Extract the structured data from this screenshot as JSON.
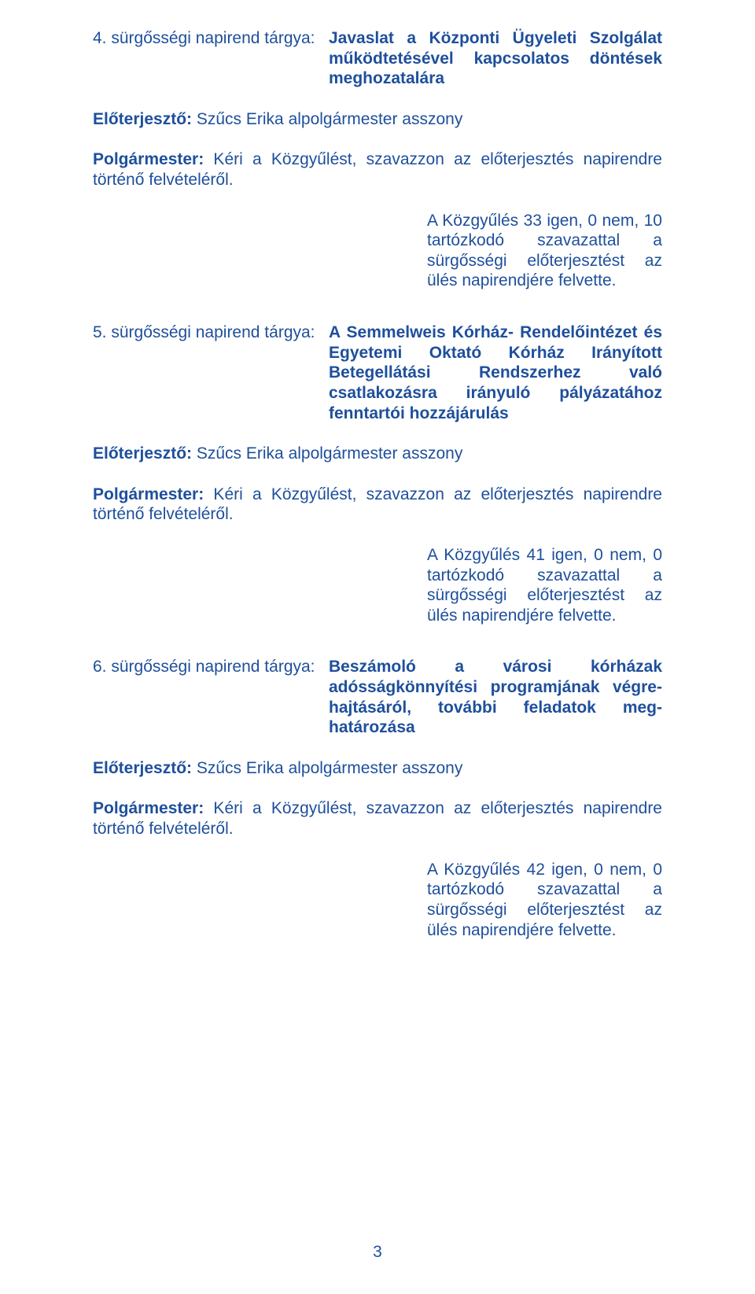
{
  "colors": {
    "text": "#1e4f9c",
    "background": "#ffffff"
  },
  "typography": {
    "font_family": "Arial",
    "font_size_pt": 16,
    "line_height": 1.22
  },
  "item4": {
    "label": "4. sürgősségi napirend tárgya:",
    "title": "Javaslat a Központi Ügyeleti Szolgálat működtetésével kapcsolatos döntések meghozatalára",
    "presenter_label": "Előterjesztő:",
    "presenter": " Szűcs Erika alpolgármester asszony",
    "mayor_label": "Polgármester:",
    "mayor_text": " Kéri a Közgyűlést, szavazzon az előterjesztés napirendre történő felvételéről.",
    "result": "A Közgyűlés 33  igen, 0 nem, 10 tartózkodó szavazattal a sürgősségi előterjesztést az ülés napirendjére felvette."
  },
  "item5": {
    "label": "5. sürgősségi napirend tárgya:",
    "title": "A Semmelweis Kórház- Rendelőintézet és Egyetemi Oktató Kórház Irányított Betegellátási Rendszerhez való csatlakozásra irányuló pályázatához fenntartói hozzájárulás",
    "presenter_label": "Előterjesztő:",
    "presenter": " Szűcs Erika alpolgármester asszony",
    "mayor_label": "Polgármester:",
    "mayor_text": " Kéri a Közgyűlést, szavazzon az előterjesztés napirendre történő felvételéről.",
    "result": "A Közgyűlés 41 igen, 0 nem, 0 tartózkodó szavazattal a sürgősségi előterjesztést az ülés napirendjére felvette."
  },
  "item6": {
    "label": "6. sürgősségi napirend tárgya:",
    "title": "Beszámoló a városi kórházak adósságkönnyítési programjának végre­hajtásáról, további feladatok meg­határozása",
    "presenter_label": "Előterjesztő:",
    "presenter": " Szűcs Erika alpolgármester asszony",
    "mayor_label": "Polgármester:",
    "mayor_text": " Kéri a Közgyűlést, szavazzon az előterjesztés napirendre történő felvételéről.",
    "result": "A Közgyűlés 42 igen, 0 nem, 0 tartózkodó szavazattal a sürgősségi előterjesztést az ülés napirendjére felvette."
  },
  "page_number": "3"
}
